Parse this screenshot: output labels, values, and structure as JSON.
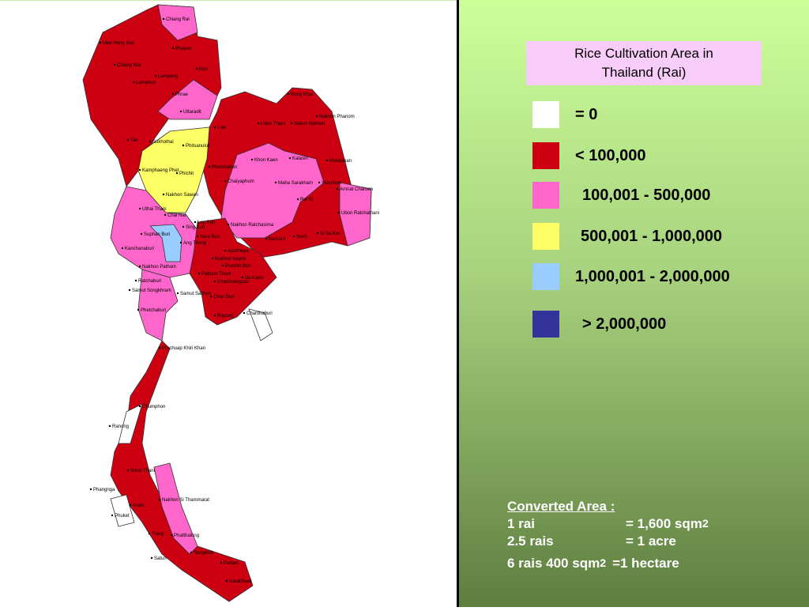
{
  "legend": {
    "title_lines": [
      "Rice Cultivation Area in",
      "Thailand (Rai)"
    ],
    "items": [
      {
        "color": "#ffffff",
        "label": "= 0"
      },
      {
        "color": "#cc0011",
        "label": "< 100,000"
      },
      {
        "color": "#ff66cc",
        "label": "100,001 - 500,000"
      },
      {
        "color": "#ffff66",
        "label": "500,001 - 1,000,000"
      },
      {
        "color": "#99ccff",
        "label": "1,000,001 - 2,000,000"
      },
      {
        "color": "#333399",
        "label": "> 2,000,000"
      }
    ]
  },
  "notes": {
    "heading": "Converted Area :",
    "rows": [
      {
        "left": "1 rai",
        "right": "= 1,600 sqm",
        "sup": "2"
      },
      {
        "left": "2.5 rais",
        "right": "= 1 acre"
      },
      {
        "left": "6 rais 400 sqm",
        "sup": "2",
        "right": "=1 hectare"
      }
    ]
  },
  "map": {
    "labels": [
      "Chiang Rai",
      "Phayao",
      "Chiang Mai",
      "Lamphun",
      "Lampang",
      "Nan",
      "Phrae",
      "Uttaradit",
      "Sukhothai",
      "Phitsanulok",
      "Tak",
      "Kamphaeng Phet",
      "Phichit",
      "Phetchabun",
      "Nakhon Sawan",
      "Uthai Thani",
      "Chai Nat",
      "Lop Buri",
      "Sing Buri",
      "Suphan Buri",
      "Sara Buri",
      "Ang Thong",
      "Kanchanaburi",
      "Ayutthaya",
      "Nakhon Nayok",
      "Nakhon Pathom",
      "Pathum Thani",
      "Ratchaburi",
      "Prachin Buri",
      "Chachoengsao",
      "Samut Songkhram",
      "Samut Sakhon",
      "Phetchaburi",
      "Chon Buri",
      "Rayong",
      "Chanthaburi",
      "Prachuap Khiri Khan",
      "Chumphon",
      "Ranong",
      "Surat Thani",
      "Phangnga",
      "Krabi",
      "Phuket",
      "Nakhon Si Thammarat",
      "Trang",
      "Phatthalung",
      "Songkhla",
      "Satun",
      "Pattani",
      "Narathiwat",
      "Loei",
      "Udon Thani",
      "Nong Khai",
      "Sakon Nakhon",
      "Nakhon Phanom",
      "Khon Kaen",
      "Kalasin",
      "Mukdahan",
      "Chaiyaphum",
      "Maha Sarakham",
      "Yasothon",
      "Amnat Charoen",
      "Roi Et",
      "Ubon Ratchathani",
      "Nakhon Ratchasima",
      "Buriram",
      "Surin",
      "Si Sa Ket",
      "Sa Kaeo",
      "Mae Hong Son"
    ]
  }
}
